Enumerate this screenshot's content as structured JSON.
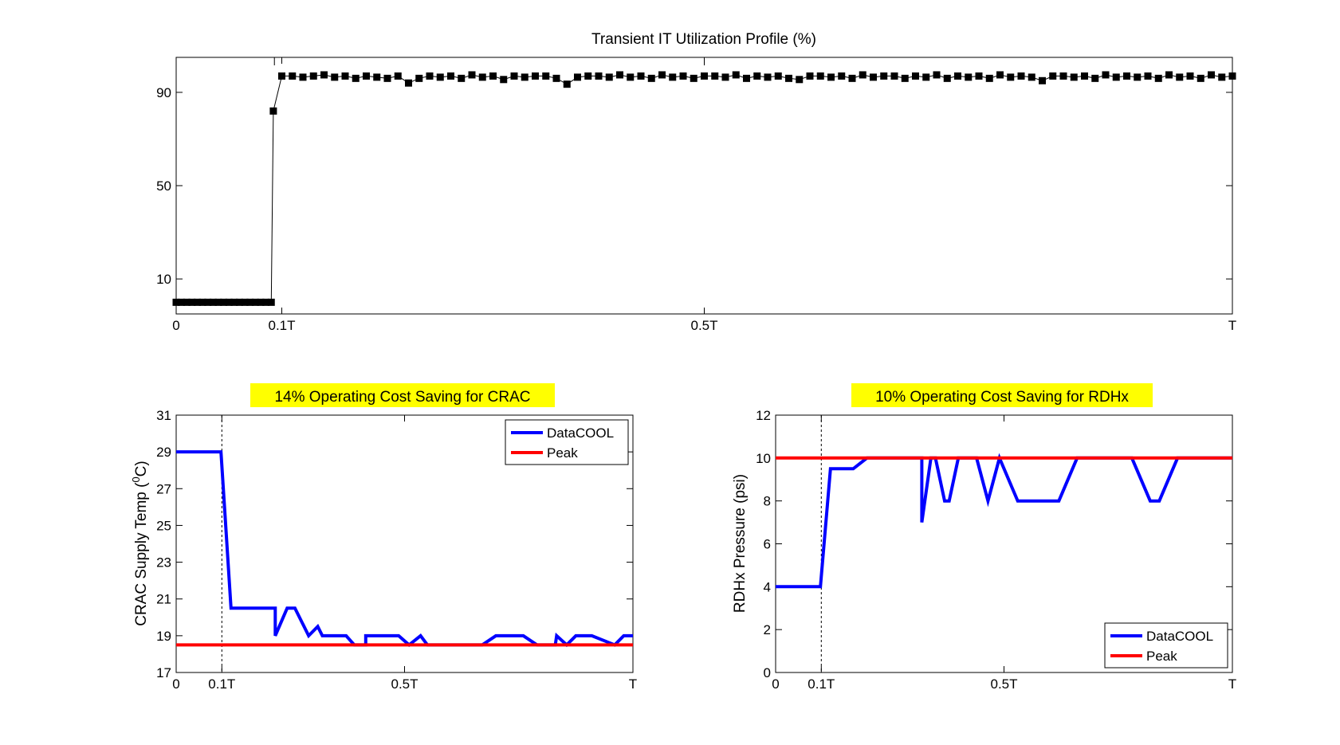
{
  "chart_data": [
    {
      "type": "scatter",
      "title": "Transient IT Utilization Profile (%)",
      "xlabel": "",
      "ylabel": "",
      "xlim": [
        0,
        1
      ],
      "ylim": [
        -5,
        105
      ],
      "xticks": [
        {
          "v": 0,
          "label": "0"
        },
        {
          "v": 0.1,
          "label": "0.1T"
        },
        {
          "v": 0.5,
          "label": "0.5T"
        },
        {
          "v": 1,
          "label": "T"
        }
      ],
      "yticks": [
        {
          "v": 10,
          "label": "10"
        },
        {
          "v": 50,
          "label": "50"
        },
        {
          "v": 90,
          "label": "90"
        }
      ],
      "top_ticks": [
        0.093,
        0.5
      ],
      "grid": false,
      "series": [
        {
          "color": "#000000",
          "marker": "square",
          "x": [
            0,
            0.005,
            0.01,
            0.015,
            0.02,
            0.025,
            0.03,
            0.035,
            0.04,
            0.045,
            0.05,
            0.055,
            0.06,
            0.065,
            0.07,
            0.075,
            0.08,
            0.085,
            0.09,
            0.092,
            0.1,
            0.11,
            0.12,
            0.13,
            0.14,
            0.15,
            0.16,
            0.17,
            0.18,
            0.19,
            0.2,
            0.21,
            0.22,
            0.23,
            0.24,
            0.25,
            0.26,
            0.27,
            0.28,
            0.29,
            0.3,
            0.31,
            0.32,
            0.33,
            0.34,
            0.35,
            0.36,
            0.37,
            0.38,
            0.39,
            0.4,
            0.41,
            0.42,
            0.43,
            0.44,
            0.45,
            0.46,
            0.47,
            0.48,
            0.49,
            0.5,
            0.51,
            0.52,
            0.53,
            0.54,
            0.55,
            0.56,
            0.57,
            0.58,
            0.59,
            0.6,
            0.61,
            0.62,
            0.63,
            0.64,
            0.65,
            0.66,
            0.67,
            0.68,
            0.69,
            0.7,
            0.71,
            0.72,
            0.73,
            0.74,
            0.75,
            0.76,
            0.77,
            0.78,
            0.79,
            0.8,
            0.81,
            0.82,
            0.83,
            0.84,
            0.85,
            0.86,
            0.87,
            0.88,
            0.89,
            0.9,
            0.91,
            0.92,
            0.93,
            0.94,
            0.95,
            0.96,
            0.97,
            0.98,
            0.99,
            1.0
          ],
          "y": [
            0,
            0,
            0,
            0,
            0,
            0,
            0,
            0,
            0,
            0,
            0,
            0,
            0,
            0,
            0,
            0,
            0,
            0,
            0,
            82,
            97,
            97,
            96.5,
            97,
            97.5,
            96.5,
            97,
            96,
            97,
            96.5,
            96,
            97,
            94,
            96,
            97,
            96.5,
            97,
            96,
            97.5,
            96.5,
            97,
            95.5,
            97,
            96.5,
            97,
            97,
            96,
            93.5,
            96.5,
            97,
            97,
            96.5,
            97.5,
            96.5,
            97,
            96,
            97.5,
            96.5,
            97,
            96,
            97,
            97,
            96.5,
            97.5,
            96,
            97,
            96.5,
            97,
            96,
            95.5,
            97,
            97,
            96.5,
            97,
            96,
            97.5,
            96.5,
            97,
            97,
            96,
            97,
            96.5,
            97.5,
            96,
            97,
            96.5,
            97,
            96,
            97.5,
            96.5,
            97,
            96.5,
            95,
            97,
            97,
            96.5,
            97,
            96,
            97.5,
            96.5,
            97,
            96.5,
            97,
            96,
            97.5,
            96.5,
            97,
            96,
            97.5,
            96.5,
            97
          ]
        }
      ]
    },
    {
      "type": "line",
      "title": "14% Operating Cost Saving for CRAC",
      "title_highlight": "#ffff00",
      "xlabel": "",
      "ylabel": "CRAC Supply Temp (",
      "ylabel_sup": "0",
      "ylabel_tail": "C)",
      "xlim": [
        0,
        1
      ],
      "ylim": [
        17,
        31
      ],
      "xticks": [
        {
          "v": 0,
          "label": "0"
        },
        {
          "v": 0.1,
          "label": "0.1T"
        },
        {
          "v": 0.5,
          "label": "0.5T"
        },
        {
          "v": 1,
          "label": "T"
        }
      ],
      "yticks": [
        {
          "v": 17,
          "label": "17"
        },
        {
          "v": 19,
          "label": "19"
        },
        {
          "v": 21,
          "label": "21"
        },
        {
          "v": 23,
          "label": "23"
        },
        {
          "v": 25,
          "label": "25"
        },
        {
          "v": 27,
          "label": "27"
        },
        {
          "v": 29,
          "label": "29"
        },
        {
          "v": 31,
          "label": "31"
        }
      ],
      "vline_x": 0.1,
      "grid": false,
      "legend": {
        "position": "top-right"
      },
      "series": [
        {
          "name": "DataCOOL",
          "color": "#0000ff",
          "x": [
            0,
            0.098,
            0.12,
            0.217,
            0.217,
            0.243,
            0.26,
            0.29,
            0.31,
            0.32,
            0.33,
            0.372,
            0.39,
            0.415,
            0.415,
            0.487,
            0.51,
            0.535,
            0.55,
            0.67,
            0.7,
            0.76,
            0.79,
            0.83,
            0.833,
            0.855,
            0.875,
            0.91,
            0.96,
            0.98,
            1.0
          ],
          "y": [
            29,
            29,
            20.5,
            20.5,
            19,
            20.5,
            20.5,
            19,
            19.5,
            19,
            19,
            19,
            18.5,
            18.5,
            19,
            19,
            18.5,
            19,
            18.5,
            18.5,
            19,
            19,
            18.5,
            18.5,
            19,
            18.5,
            19,
            19,
            18.5,
            19,
            19
          ]
        },
        {
          "name": "Peak",
          "color": "#ff0000",
          "x": [
            0,
            1
          ],
          "y": [
            18.5,
            18.5
          ]
        }
      ]
    },
    {
      "type": "line",
      "title": "10% Operating Cost Saving for RDHx",
      "title_highlight": "#ffff00",
      "xlabel": "",
      "ylabel": "RDHx Pressure (psi)",
      "xlim": [
        0,
        1
      ],
      "ylim": [
        0,
        12
      ],
      "xticks": [
        {
          "v": 0,
          "label": "0"
        },
        {
          "v": 0.1,
          "label": "0.1T"
        },
        {
          "v": 0.5,
          "label": "0.5T"
        },
        {
          "v": 1,
          "label": "T"
        }
      ],
      "yticks": [
        {
          "v": 0,
          "label": "0"
        },
        {
          "v": 2,
          "label": "2"
        },
        {
          "v": 4,
          "label": "4"
        },
        {
          "v": 6,
          "label": "6"
        },
        {
          "v": 8,
          "label": "8"
        },
        {
          "v": 10,
          "label": "10"
        },
        {
          "v": 12,
          "label": "12"
        }
      ],
      "vline_x": 0.1,
      "grid": false,
      "legend": {
        "position": "bottom-right"
      },
      "series": [
        {
          "name": "DataCOOL",
          "color": "#0000ff",
          "x": [
            0,
            0.098,
            0.12,
            0.17,
            0.2,
            0.32,
            0.32,
            0.34,
            0.35,
            0.37,
            0.38,
            0.4,
            0.4,
            0.42,
            0.44,
            0.465,
            0.49,
            0.53,
            0.58,
            0.62,
            0.66,
            0.68,
            0.78,
            0.82,
            0.84,
            0.88,
            0.92,
            1.0
          ],
          "y": [
            4,
            4,
            9.5,
            9.5,
            10,
            10,
            7,
            10,
            10,
            8,
            8,
            10,
            10,
            10,
            10,
            8,
            10,
            8,
            8,
            8,
            10,
            10,
            10,
            8,
            8,
            10,
            10,
            10
          ]
        },
        {
          "name": "Peak",
          "color": "#ff0000",
          "x": [
            0,
            1
          ],
          "y": [
            10,
            10
          ]
        }
      ]
    }
  ]
}
